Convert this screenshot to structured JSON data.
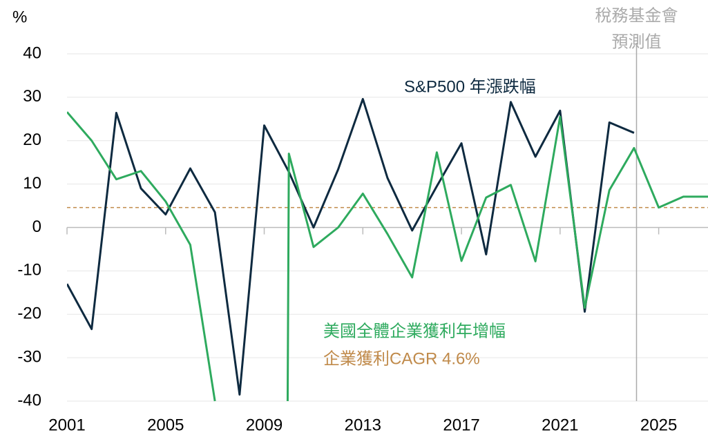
{
  "chart_data": {
    "type": "line",
    "y_unit": "%",
    "xlim": [
      2001,
      2027
    ],
    "ylim": [
      -40,
      40
    ],
    "xticks": [
      2001,
      2005,
      2009,
      2013,
      2017,
      2021,
      2025
    ],
    "yticks": [
      -40,
      -30,
      -20,
      -10,
      0,
      10,
      20,
      30,
      40
    ],
    "grid": true,
    "series": [
      {
        "name": "S&P500 年漲跌幅",
        "color": "#0e2a40",
        "x": [
          2001,
          2002,
          2003,
          2004,
          2005,
          2006,
          2007,
          2008,
          2009,
          2010,
          2011,
          2012,
          2013,
          2014,
          2015,
          2016,
          2017,
          2018,
          2019,
          2020,
          2021,
          2022,
          2023,
          2024
        ],
        "values": [
          -13,
          -23.4,
          26.4,
          9,
          3,
          13.6,
          3.5,
          -38.5,
          23.5,
          12.8,
          0,
          13.4,
          29.6,
          11.4,
          -0.7,
          9.5,
          19.4,
          -6.2,
          28.9,
          16.3,
          26.9,
          -19.4,
          24.2,
          21.8
        ]
      },
      {
        "name": "美國全體企業獲利年增幅",
        "color": "#2eaa5e",
        "x": [
          2001,
          2002,
          2003,
          2004,
          2005,
          2006,
          2007,
          2008,
          2009.95,
          2010,
          2011,
          2012,
          2013,
          2014,
          2015,
          2016,
          2017,
          2018,
          2019,
          2020,
          2021,
          2022,
          2023,
          2024,
          2025,
          2026,
          2027
        ],
        "values": [
          26.6,
          20,
          11.1,
          13,
          6,
          -4,
          -40,
          null,
          -40,
          17,
          -4.5,
          0,
          7.8,
          -1.5,
          -11.5,
          17.3,
          -7.7,
          6.9,
          9.8,
          -7.8,
          25.5,
          -18.5,
          8.6,
          18.3,
          4.6,
          7.1,
          7.1
        ]
      }
    ],
    "reference_line": {
      "label": "企業獲利CAGR 4.6%",
      "value": 4.6,
      "color": "#c08a4a"
    },
    "forecast_line": {
      "x": 2024.1,
      "label_lines": [
        "稅務基金會",
        "預測值"
      ],
      "color": "#aaaaaa"
    }
  }
}
